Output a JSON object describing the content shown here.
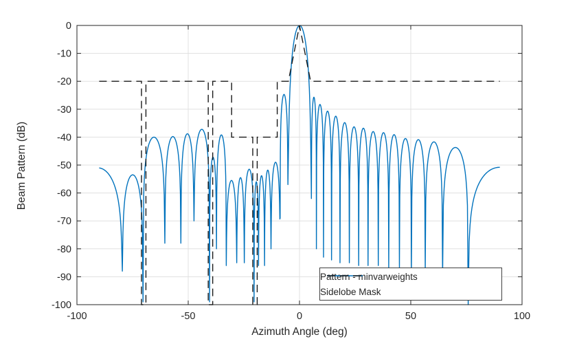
{
  "chart_data": {
    "type": "line",
    "title": "",
    "xlabel": "Azimuth Angle (deg)",
    "ylabel": "Beam Pattern (dB)",
    "xlim": [
      -100,
      100
    ],
    "ylim": [
      -100,
      0
    ],
    "x_ticks": [
      -100,
      -50,
      0,
      50,
      100
    ],
    "x_tick_labels": [
      "-100",
      "-50",
      "0",
      "50",
      "100"
    ],
    "y_ticks": [
      0,
      -10,
      -20,
      -30,
      -40,
      -50,
      -60,
      -70,
      -80,
      -90,
      -100
    ],
    "y_tick_labels": [
      "0",
      "-10",
      "-20",
      "-30",
      "-40",
      "-50",
      "-60",
      "-70",
      "-80",
      "-90",
      "-100"
    ],
    "grid": true,
    "grid_color": "#e0e0e0",
    "axis_color": "#262626",
    "data_span_deg": [
      -90,
      90
    ],
    "legend": {
      "position": "southeast"
    },
    "series": [
      {
        "name": "Pattern - minvarweights",
        "color": "#0072BD",
        "style": "solid",
        "comment_lobes": "each lobe: [x_null_left, null_depth_left_dB, peak_dB, x_null_right, null_depth_right_dB, shape]",
        "lobes": [
          [
            -101.5,
            -100,
            -51.0,
            -79.6,
            -88,
            "side"
          ],
          [
            -79.6,
            -88,
            -53.5,
            -70.3,
            -99,
            "side"
          ],
          [
            -70.3,
            -99,
            -40.0,
            -60.5,
            -78,
            "side"
          ],
          [
            -60.5,
            -78,
            -39.8,
            -53.3,
            -78,
            "side"
          ],
          [
            -53.3,
            -78,
            -38.8,
            -47.4,
            -70,
            "side"
          ],
          [
            -47.4,
            -70,
            -37.2,
            -40.4,
            -99,
            "side"
          ],
          [
            -40.4,
            -99,
            -47.2,
            -37.3,
            -80,
            "side"
          ],
          [
            -37.3,
            -80,
            -39.2,
            -32.9,
            -86,
            "side"
          ],
          [
            -32.9,
            -86,
            -55.5,
            -28.2,
            -85,
            "side"
          ],
          [
            -28.2,
            -85,
            -54.5,
            -24.8,
            -85,
            "side"
          ],
          [
            -24.8,
            -85,
            -51.5,
            -20.4,
            -99,
            "side"
          ],
          [
            -20.4,
            -99,
            -56.0,
            -18.4,
            -86,
            "side"
          ],
          [
            -18.4,
            -86,
            -53.8,
            -15.7,
            -86,
            "side"
          ],
          [
            -15.7,
            -86,
            -51.8,
            -12.8,
            -80,
            "side"
          ],
          [
            -12.8,
            -80,
            -49.0,
            -8.7,
            -69,
            "side"
          ],
          [
            -8.7,
            -69,
            -24.7,
            -5.2,
            -57,
            "side"
          ],
          [
            -5.2,
            -57,
            0.0,
            5.35,
            -62,
            "main"
          ],
          [
            5.35,
            -62,
            -25.7,
            7.6,
            -80,
            "side"
          ],
          [
            7.6,
            -80,
            -28.3,
            10.8,
            -83,
            "side"
          ],
          [
            10.8,
            -83,
            -30.7,
            14.4,
            -84,
            "side"
          ],
          [
            14.4,
            -84,
            -32.5,
            18.2,
            -85,
            "side"
          ],
          [
            18.2,
            -85,
            -34.8,
            22.4,
            -85,
            "side"
          ],
          [
            22.4,
            -85,
            -36.3,
            26.6,
            -86,
            "side"
          ],
          [
            26.6,
            -86,
            -36.8,
            30.8,
            -86,
            "side"
          ],
          [
            30.8,
            -86,
            -38.0,
            35.4,
            -86,
            "side"
          ],
          [
            35.4,
            -86,
            -38.4,
            40.1,
            -87,
            "side"
          ],
          [
            40.1,
            -87,
            -39.1,
            44.9,
            -87,
            "side"
          ],
          [
            44.9,
            -87,
            -40.5,
            50.3,
            -88,
            "side"
          ],
          [
            50.3,
            -88,
            -40.9,
            56.5,
            -88,
            "side"
          ],
          [
            56.5,
            -88,
            -41.7,
            64.3,
            -90,
            "side"
          ],
          [
            64.3,
            -90,
            -43.7,
            75.8,
            -100,
            "side"
          ],
          [
            75.8,
            -100,
            -50.8,
            104.0,
            -100,
            "side"
          ]
        ]
      },
      {
        "name": "Sidelobe Mask",
        "color": "#1a1a1a",
        "style": "dashed",
        "comment_points": "piecewise mask vertices [azimuth_deg, dB]",
        "points": [
          [
            -90,
            -20
          ],
          [
            -71,
            -20
          ],
          [
            -71,
            -100
          ],
          [
            -69,
            -100
          ],
          [
            -69,
            -20
          ],
          [
            -41,
            -20
          ],
          [
            -41,
            -100
          ],
          [
            -39,
            -100
          ],
          [
            -39,
            -20
          ],
          [
            -30.5,
            -20
          ],
          [
            -30.5,
            -40
          ],
          [
            -21,
            -40
          ],
          [
            -21,
            -100
          ],
          [
            -19,
            -100
          ],
          [
            -19,
            -40
          ],
          [
            -10,
            -40
          ],
          [
            -10,
            -20
          ],
          [
            -5,
            -20
          ],
          [
            0,
            0
          ],
          [
            5,
            -20
          ],
          [
            90,
            -20
          ]
        ]
      }
    ]
  }
}
